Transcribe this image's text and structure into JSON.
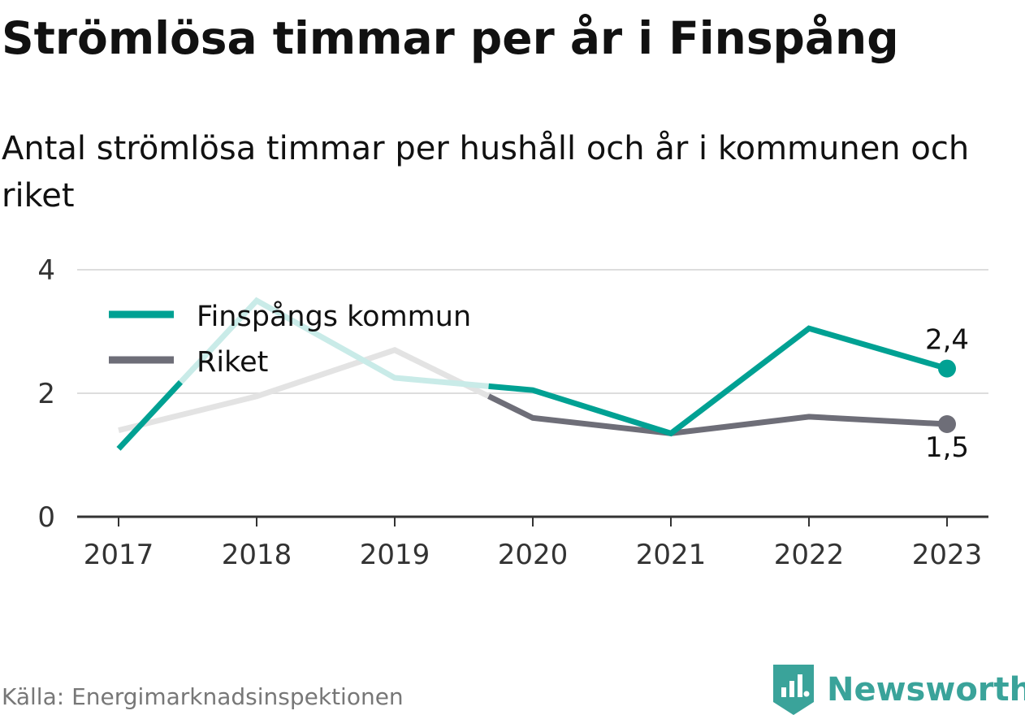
{
  "chart_data": {
    "type": "line",
    "title": "Strömlösa timmar per år i Finspång",
    "subtitle": "Antal strömlösa timmar per hushåll och år i kommunen och riket",
    "x": [
      "2017",
      "2018",
      "2019",
      "2020",
      "2021",
      "2022",
      "2023"
    ],
    "ylim": [
      0,
      4
    ],
    "yticks": [
      0,
      2,
      4
    ],
    "grid": true,
    "legend_position": "top-left",
    "series": [
      {
        "name": "Finspångs kommun",
        "color": "#00A193",
        "faded_color": "#C9EBE8",
        "values": [
          1.1,
          3.5,
          2.25,
          2.05,
          1.35,
          3.05,
          2.4
        ],
        "end_label": "2,4"
      },
      {
        "name": "Riket",
        "color": "#6E6E78",
        "faded_color": "#E3E3E3",
        "values": [
          1.4,
          1.95,
          2.7,
          1.6,
          1.35,
          1.62,
          1.5
        ],
        "end_label": "1,5"
      }
    ]
  },
  "source": "Källa: Energimarknadsinspektionen",
  "brand": {
    "name": "Newsworthy",
    "color": "#3AA39A"
  },
  "colors": {
    "axis": "#333333",
    "grid": "#DDDDDD",
    "tick_label": "#333333"
  }
}
